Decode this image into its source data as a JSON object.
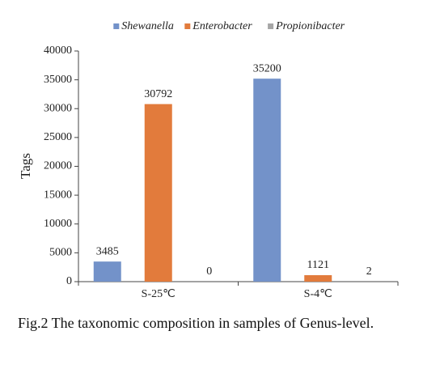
{
  "chart_data": {
    "type": "bar",
    "categories": [
      "S-25℃",
      "S-4℃"
    ],
    "series": [
      {
        "name": "Shewanella",
        "color": "#7392c9",
        "values": [
          3485,
          35200
        ]
      },
      {
        "name": "Enterobacter",
        "color": "#e27b3c",
        "values": [
          30792,
          1121
        ]
      },
      {
        "name": "Propionibacter",
        "color": "#a6a6a6",
        "values": [
          0,
          2
        ]
      }
    ],
    "y_label": "Tags",
    "ylim": [
      0,
      40000
    ],
    "yticks": [
      0,
      5000,
      10000,
      15000,
      20000,
      25000,
      30000,
      35000,
      40000
    ],
    "legend": "top",
    "data_labels": true,
    "caption": "Fig.2 The taxonomic composition in samples of Genus-level."
  }
}
